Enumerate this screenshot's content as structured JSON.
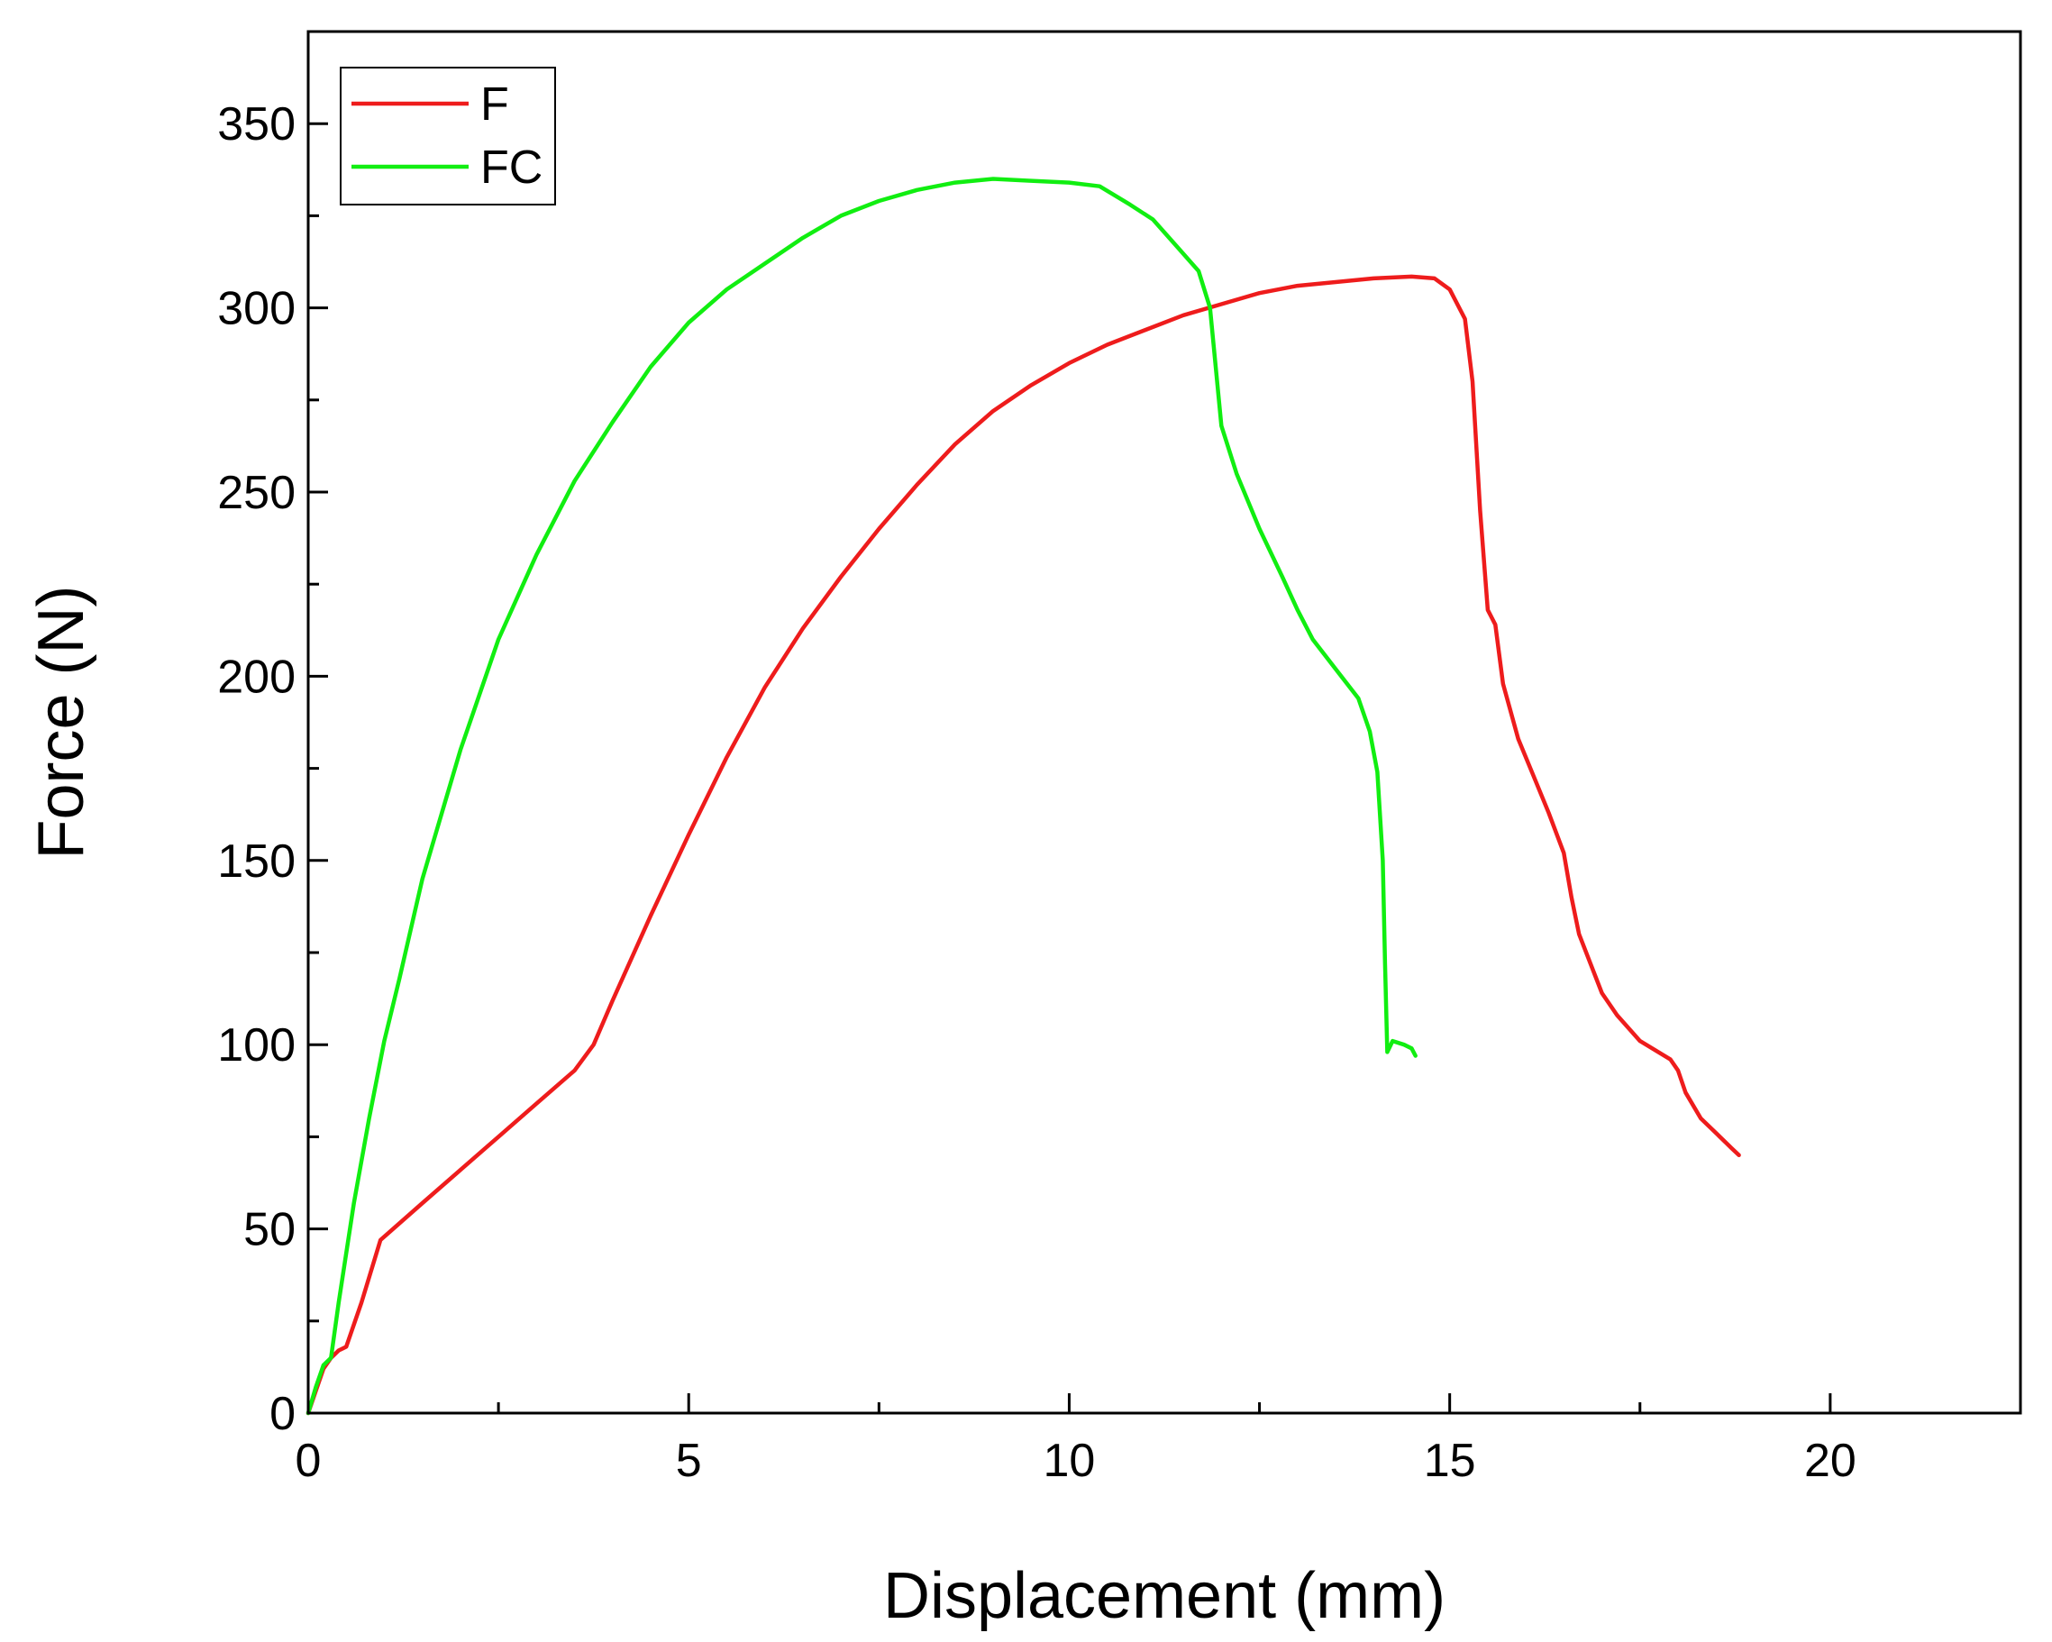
{
  "chart_data": {
    "type": "line",
    "xlabel": "Displacement (mm)",
    "ylabel": "Force (N)",
    "xlim": [
      0,
      22.5
    ],
    "ylim": [
      0,
      375
    ],
    "x_ticks": [
      0,
      5,
      10,
      15,
      20
    ],
    "y_ticks": [
      0,
      50,
      100,
      150,
      200,
      250,
      300,
      350
    ],
    "x_ticks_text": [
      "0",
      "5",
      "10",
      "15",
      "20"
    ],
    "y_ticks_text": [
      "0",
      "50",
      "100",
      "150",
      "200",
      "250",
      "300",
      "350"
    ],
    "x_minor_step": 2.5,
    "y_minor_step": 25,
    "grid": false,
    "legend_position": "top-left",
    "series": [
      {
        "name": "F",
        "color": "#ee1c1c",
        "points": [
          [
            0,
            0
          ],
          [
            0.1,
            6
          ],
          [
            0.2,
            12
          ],
          [
            0.3,
            15
          ],
          [
            0.4,
            17
          ],
          [
            0.5,
            18
          ],
          [
            0.7,
            30
          ],
          [
            0.95,
            47
          ],
          [
            1.5,
            57
          ],
          [
            2.0,
            66
          ],
          [
            2.5,
            75
          ],
          [
            3.0,
            84
          ],
          [
            3.5,
            93
          ],
          [
            3.75,
            100
          ],
          [
            4.0,
            112
          ],
          [
            4.5,
            135
          ],
          [
            5.0,
            157
          ],
          [
            5.5,
            178
          ],
          [
            6.0,
            197
          ],
          [
            6.5,
            213
          ],
          [
            7.0,
            227
          ],
          [
            7.5,
            240
          ],
          [
            8.0,
            252
          ],
          [
            8.5,
            263
          ],
          [
            9.0,
            272
          ],
          [
            9.5,
            279
          ],
          [
            10.0,
            285
          ],
          [
            10.5,
            290
          ],
          [
            11.0,
            294
          ],
          [
            11.5,
            298
          ],
          [
            12.0,
            301
          ],
          [
            12.5,
            304
          ],
          [
            13.0,
            306
          ],
          [
            13.5,
            307
          ],
          [
            14.0,
            308
          ],
          [
            14.5,
            308.5
          ],
          [
            14.8,
            308
          ],
          [
            15.0,
            305
          ],
          [
            15.2,
            297
          ],
          [
            15.3,
            280
          ],
          [
            15.4,
            245
          ],
          [
            15.5,
            218
          ],
          [
            15.6,
            214
          ],
          [
            15.7,
            198
          ],
          [
            15.9,
            183
          ],
          [
            16.1,
            173
          ],
          [
            16.3,
            163
          ],
          [
            16.5,
            152
          ],
          [
            16.6,
            140
          ],
          [
            16.7,
            130
          ],
          [
            16.85,
            122
          ],
          [
            17.0,
            114
          ],
          [
            17.2,
            108
          ],
          [
            17.5,
            101
          ],
          [
            17.9,
            96
          ],
          [
            18.0,
            93
          ],
          [
            18.1,
            87
          ],
          [
            18.3,
            80
          ],
          [
            18.5,
            76
          ],
          [
            18.7,
            72
          ],
          [
            18.8,
            70
          ]
        ]
      },
      {
        "name": "FC",
        "color": "#11ee11",
        "points": [
          [
            0,
            0
          ],
          [
            0.1,
            7
          ],
          [
            0.2,
            13
          ],
          [
            0.3,
            15
          ],
          [
            0.4,
            30
          ],
          [
            0.6,
            57
          ],
          [
            0.8,
            80
          ],
          [
            1.0,
            101
          ],
          [
            1.2,
            118
          ],
          [
            1.5,
            145
          ],
          [
            2.0,
            180
          ],
          [
            2.5,
            210
          ],
          [
            3.0,
            233
          ],
          [
            3.5,
            253
          ],
          [
            4.0,
            269
          ],
          [
            4.5,
            284
          ],
          [
            5.0,
            296
          ],
          [
            5.5,
            305
          ],
          [
            6.0,
            312
          ],
          [
            6.5,
            319
          ],
          [
            7.0,
            325
          ],
          [
            7.5,
            329
          ],
          [
            8.0,
            332
          ],
          [
            8.5,
            334
          ],
          [
            9.0,
            335
          ],
          [
            9.5,
            334.5
          ],
          [
            10.0,
            334
          ],
          [
            10.4,
            333
          ],
          [
            10.8,
            328
          ],
          [
            11.1,
            324
          ],
          [
            11.4,
            317
          ],
          [
            11.7,
            310
          ],
          [
            11.85,
            300
          ],
          [
            12.0,
            268
          ],
          [
            12.2,
            255
          ],
          [
            12.5,
            240
          ],
          [
            12.8,
            227
          ],
          [
            13.0,
            218
          ],
          [
            13.2,
            210
          ],
          [
            13.5,
            202
          ],
          [
            13.8,
            194
          ],
          [
            13.95,
            185
          ],
          [
            14.05,
            174
          ],
          [
            14.12,
            150
          ],
          [
            14.15,
            122
          ],
          [
            14.18,
            98
          ],
          [
            14.25,
            101
          ],
          [
            14.4,
            100
          ],
          [
            14.5,
            99
          ],
          [
            14.55,
            97
          ]
        ]
      }
    ]
  }
}
